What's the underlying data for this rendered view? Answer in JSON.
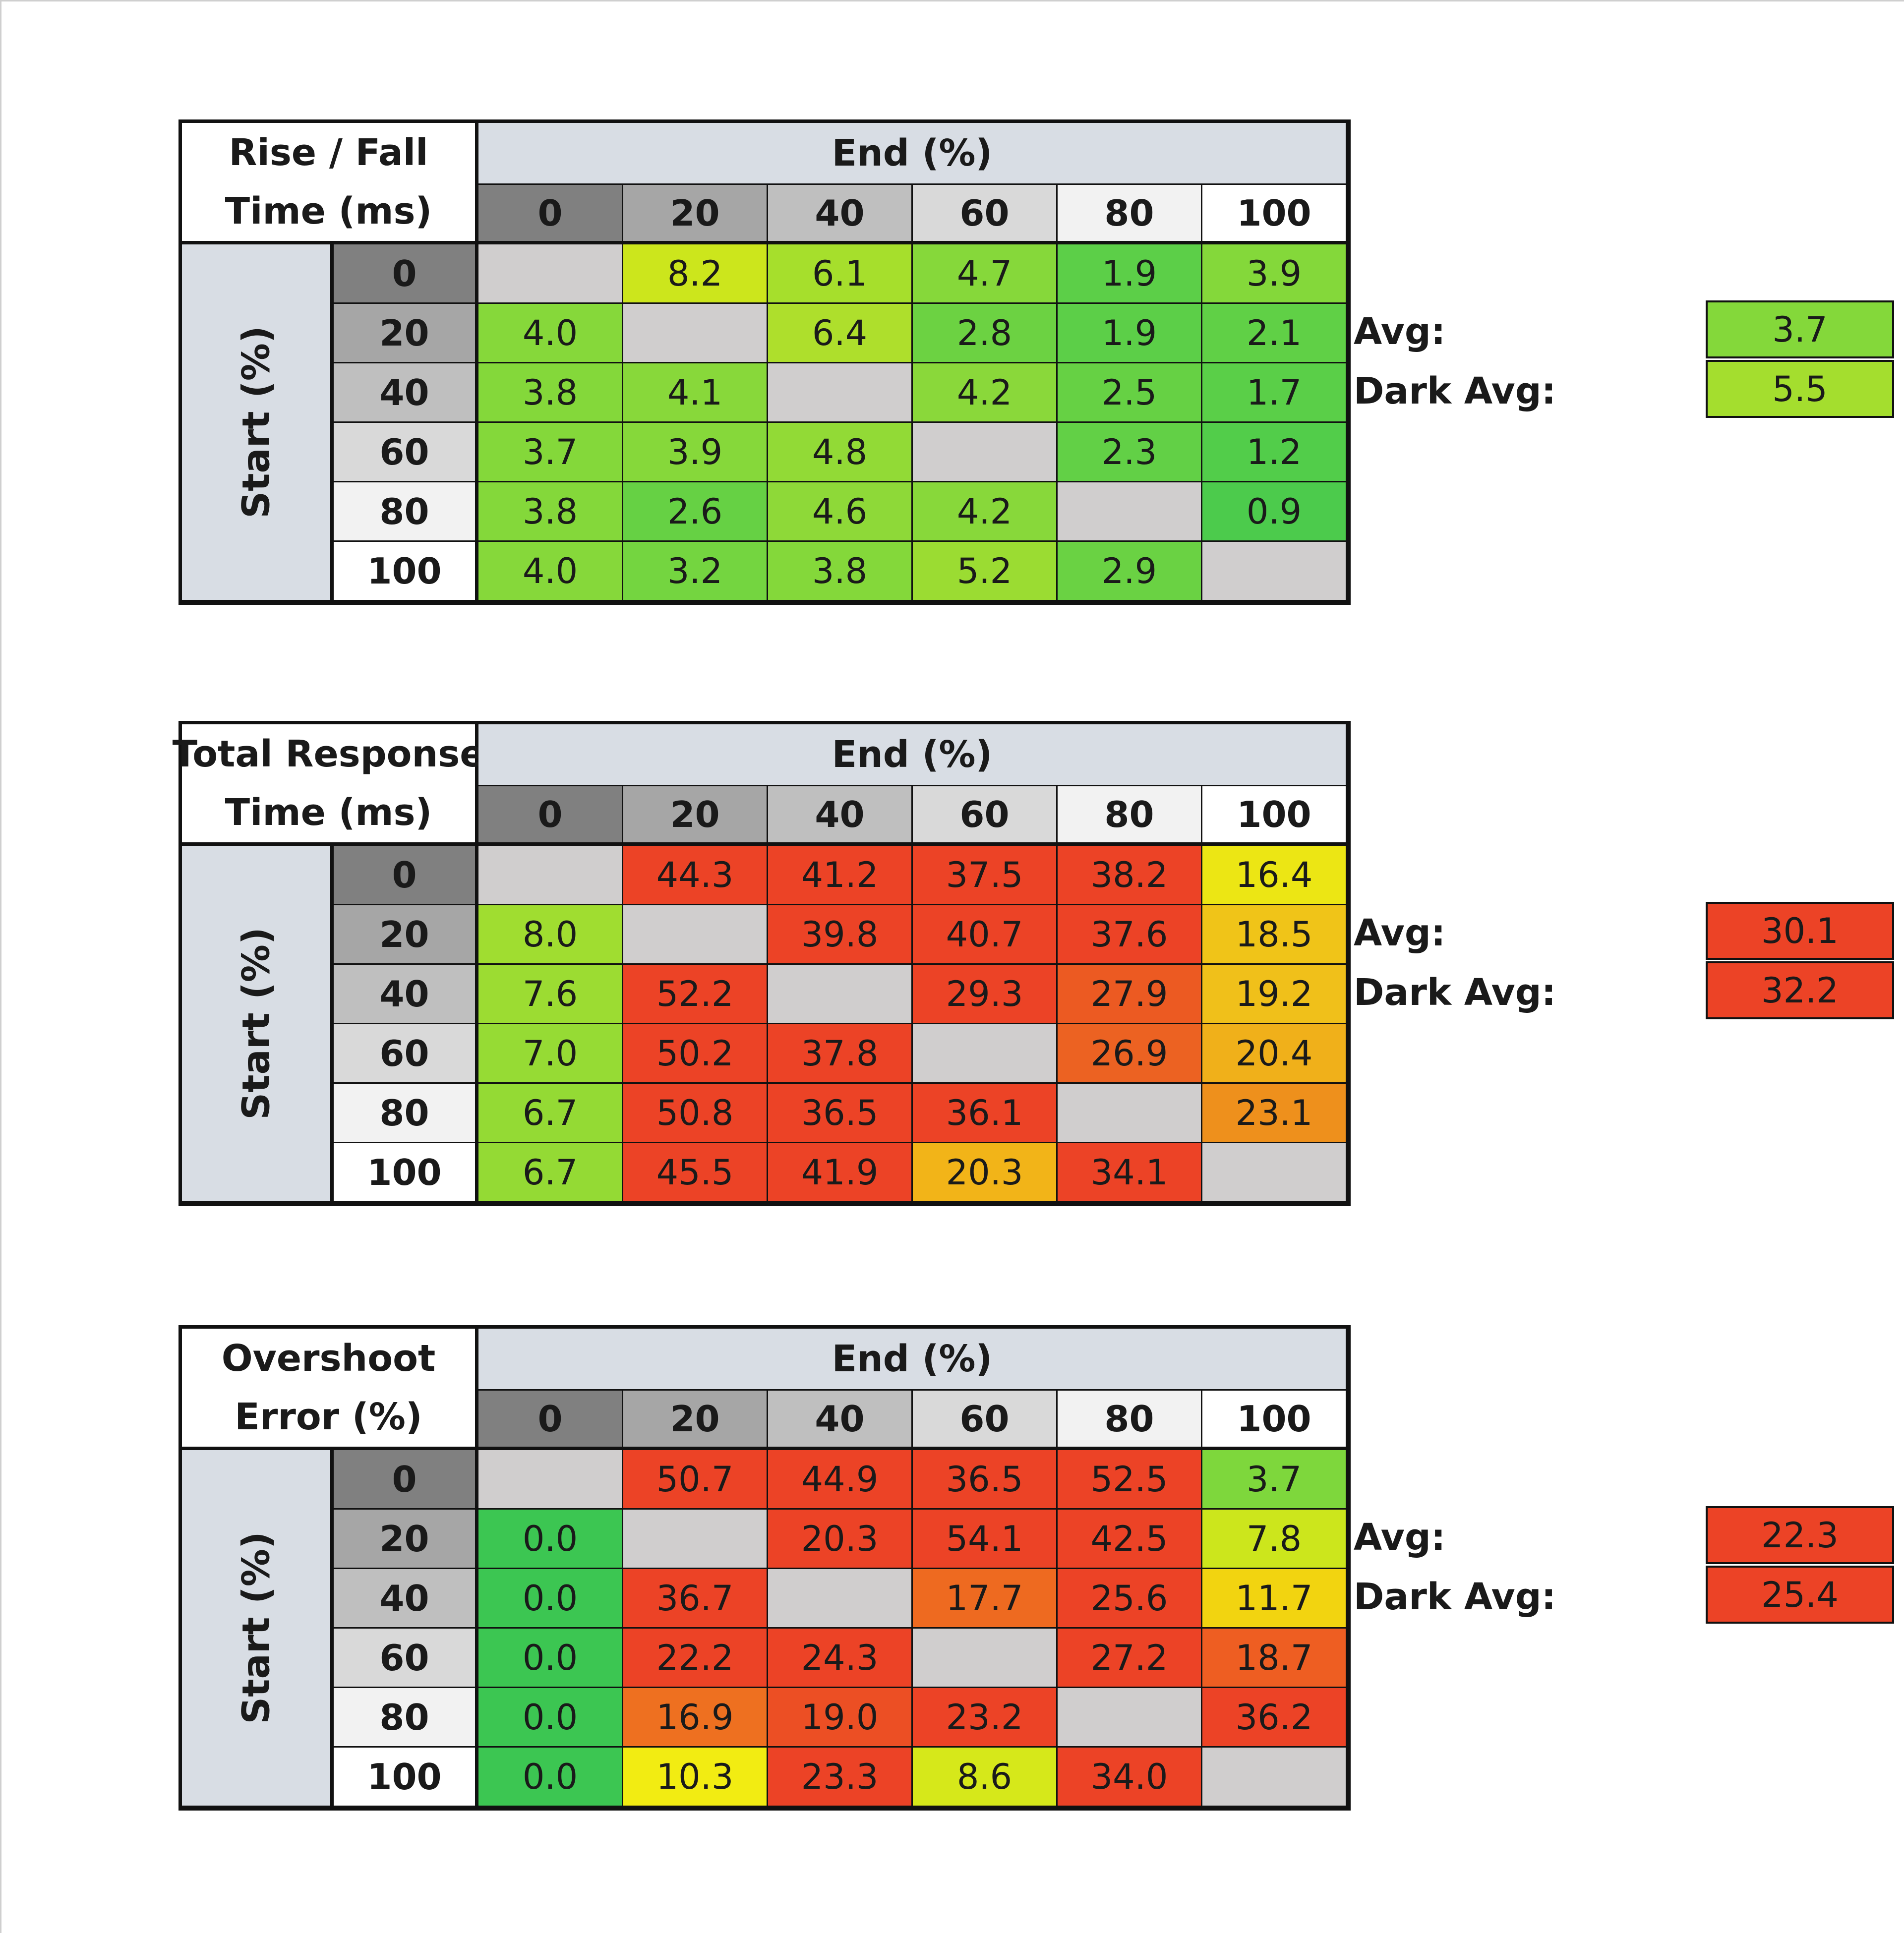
{
  "chart_data": [
    {
      "type": "heatmap",
      "title_lines": [
        "Rise / Fall",
        "Time (ms)"
      ],
      "xlabel": "End (%)",
      "ylabel": "Start (%)",
      "x_categories": [
        "0",
        "20",
        "40",
        "60",
        "80",
        "100"
      ],
      "y_categories": [
        "0",
        "20",
        "40",
        "60",
        "80",
        "100"
      ],
      "values": [
        [
          "",
          "8.2",
          "6.1",
          "4.7",
          "1.9",
          "3.9"
        ],
        [
          "4.0",
          "",
          "6.4",
          "2.8",
          "1.9",
          "2.1"
        ],
        [
          "3.8",
          "4.1",
          "",
          "4.2",
          "2.5",
          "1.7"
        ],
        [
          "3.7",
          "3.9",
          "4.8",
          "",
          "2.3",
          "1.2"
        ],
        [
          "3.8",
          "2.6",
          "4.6",
          "4.2",
          "",
          "0.9"
        ],
        [
          "4.0",
          "3.2",
          "3.8",
          "5.2",
          "2.9",
          ""
        ]
      ],
      "colors": [
        [
          "#d0cece",
          "#cce61c",
          "#a6df2c",
          "#86d83a",
          "#5ccf48",
          "#84d83a"
        ],
        [
          "#86d83a",
          "#d0cece",
          "#aedf2c",
          "#6cd242",
          "#5ccf48",
          "#60d046"
        ],
        [
          "#84d83a",
          "#88d83a",
          "#d0cece",
          "#8ad83a",
          "#66d144",
          "#5acf48"
        ],
        [
          "#84d83a",
          "#86d83a",
          "#92da36",
          "#d0cece",
          "#62d046",
          "#52cd4a"
        ],
        [
          "#84d83a",
          "#66d144",
          "#8ed938",
          "#88d83a",
          "#d0cece",
          "#4ccb4c"
        ],
        [
          "#86d83a",
          "#74d540",
          "#84d83a",
          "#9bdc32",
          "#6ad243",
          "#d0cece"
        ]
      ],
      "avg_label": "Avg:",
      "avg_value": "3.7",
      "avg_color": "#84d83a",
      "dark_avg_label": "Dark Avg:",
      "dark_avg_value": "5.5",
      "dark_avg_color": "#a4de2e"
    },
    {
      "type": "heatmap",
      "title_lines": [
        "Total Response",
        "Time (ms)"
      ],
      "xlabel": "End (%)",
      "ylabel": "Start (%)",
      "x_categories": [
        "0",
        "20",
        "40",
        "60",
        "80",
        "100"
      ],
      "y_categories": [
        "0",
        "20",
        "40",
        "60",
        "80",
        "100"
      ],
      "values": [
        [
          "",
          "44.3",
          "41.2",
          "37.5",
          "38.2",
          "16.4"
        ],
        [
          "8.0",
          "",
          "39.8",
          "40.7",
          "37.6",
          "18.5"
        ],
        [
          "7.6",
          "52.2",
          "",
          "29.3",
          "27.9",
          "19.2"
        ],
        [
          "7.0",
          "50.2",
          "37.8",
          "",
          "26.9",
          "20.4"
        ],
        [
          "6.7",
          "50.8",
          "36.5",
          "36.1",
          "",
          "23.1"
        ],
        [
          "6.7",
          "45.5",
          "41.9",
          "20.3",
          "34.1",
          ""
        ]
      ],
      "colors": [
        [
          "#d0cece",
          "#ec4326",
          "#ec4326",
          "#ec4326",
          "#ec4326",
          "#ece614"
        ],
        [
          "#a0dd30",
          "#d0cece",
          "#ec4326",
          "#ec4326",
          "#ec4326",
          "#f0c418"
        ],
        [
          "#9cdc32",
          "#ec4326",
          "#d0cece",
          "#ec4326",
          "#ec5a22",
          "#f0c01a"
        ],
        [
          "#96db34",
          "#ec4326",
          "#ec4326",
          "#d0cece",
          "#ec6222",
          "#f0b01a"
        ],
        [
          "#94da34",
          "#ec4326",
          "#ec4326",
          "#ec4326",
          "#d0cece",
          "#ee901c"
        ],
        [
          "#94da34",
          "#ec4326",
          "#ec4326",
          "#f2b418",
          "#ec4326",
          "#d0cece"
        ]
      ],
      "avg_label": "Avg:",
      "avg_value": "30.1",
      "avg_color": "#ec4326",
      "dark_avg_label": "Dark Avg:",
      "dark_avg_value": "32.2",
      "dark_avg_color": "#ec4326"
    },
    {
      "type": "heatmap",
      "title_lines": [
        "Overshoot",
        "Error (%)"
      ],
      "xlabel": "End (%)",
      "ylabel": "Start (%)",
      "x_categories": [
        "0",
        "20",
        "40",
        "60",
        "80",
        "100"
      ],
      "y_categories": [
        "0",
        "20",
        "40",
        "60",
        "80",
        "100"
      ],
      "values": [
        [
          "",
          "50.7",
          "44.9",
          "36.5",
          "52.5",
          "3.7"
        ],
        [
          "0.0",
          "",
          "20.3",
          "54.1",
          "42.5",
          "7.8"
        ],
        [
          "0.0",
          "36.7",
          "",
          "17.7",
          "25.6",
          "11.7"
        ],
        [
          "0.0",
          "22.2",
          "24.3",
          "",
          "27.2",
          "18.7"
        ],
        [
          "0.0",
          "16.9",
          "19.0",
          "23.2",
          "",
          "36.2"
        ],
        [
          "0.0",
          "10.3",
          "23.3",
          "8.6",
          "34.0",
          ""
        ]
      ],
      "colors": [
        [
          "#d0cece",
          "#ec4326",
          "#ec4326",
          "#ec4326",
          "#ec4326",
          "#7ed73c"
        ],
        [
          "#3cc652",
          "#d0cece",
          "#ec4326",
          "#ec4326",
          "#ec4326",
          "#cce61c"
        ],
        [
          "#3cc652",
          "#ec4326",
          "#d0cece",
          "#ee6a20",
          "#ec4326",
          "#f2d410"
        ],
        [
          "#3cc652",
          "#ec4326",
          "#ec4326",
          "#d0cece",
          "#ec4326",
          "#ee5e22"
        ],
        [
          "#3cc652",
          "#ee7020",
          "#ec4f24",
          "#ec4326",
          "#d0cece",
          "#ec4326"
        ],
        [
          "#3cc652",
          "#f2ec12",
          "#ec4326",
          "#d6e81a",
          "#ec4326",
          "#d0cece"
        ]
      ],
      "avg_label": "Avg:",
      "avg_value": "22.3",
      "avg_color": "#ec4326",
      "dark_avg_label": "Dark Avg:",
      "dark_avg_value": "25.4",
      "dark_avg_color": "#ec4326"
    }
  ],
  "header_colors": {
    "0": "#808080",
    "20": "#a6a6a6",
    "40": "#bfbfbf",
    "60": "#d9d9d9",
    "80": "#f2f2f2",
    "100": "#ffffff"
  }
}
